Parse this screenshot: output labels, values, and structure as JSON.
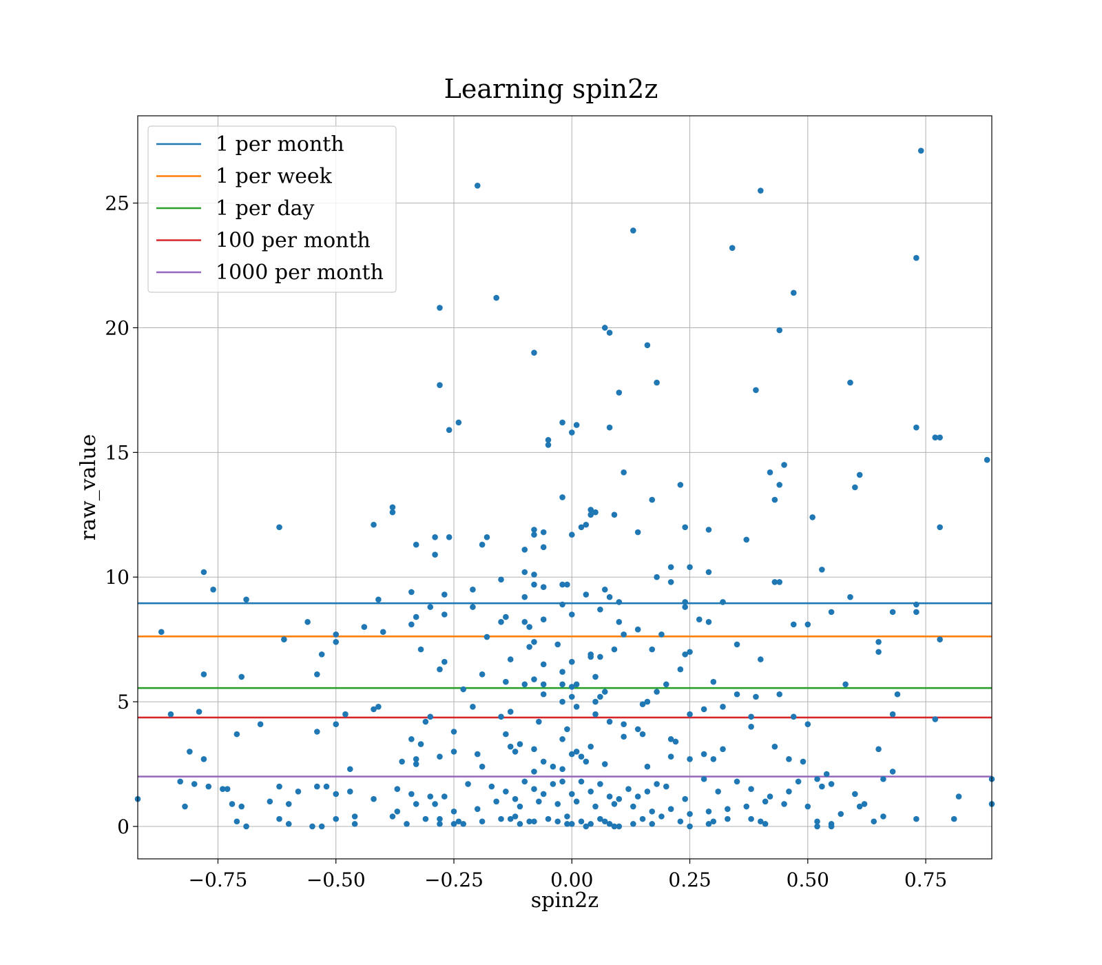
{
  "chart_data": {
    "type": "scatter",
    "title": "Learning spin2z",
    "xlabel": "spin2z",
    "ylabel": "raw_value",
    "xlim": [
      -0.92,
      0.89
    ],
    "ylim": [
      -1.3,
      28.5
    ],
    "xticks": [
      -0.75,
      -0.5,
      -0.25,
      0.0,
      0.25,
      0.5,
      0.75
    ],
    "xtick_labels": [
      "−0.75",
      "−0.50",
      "−0.25",
      "0.00",
      "0.25",
      "0.50",
      "0.75"
    ],
    "yticks": [
      0,
      5,
      10,
      15,
      20,
      25
    ],
    "ytick_labels": [
      "0",
      "5",
      "10",
      "15",
      "20",
      "25"
    ],
    "grid": true,
    "legend_position": "top-left",
    "point_color": "#1f77b4",
    "lines": [
      {
        "name": "1 per month",
        "y": 8.95,
        "color": "#1f77b4"
      },
      {
        "name": "1 per week",
        "y": 7.62,
        "color": "#ff7f0e"
      },
      {
        "name": "1 per day",
        "y": 5.55,
        "color": "#2ca02c"
      },
      {
        "name": "100 per month",
        "y": 4.37,
        "color": "#d62728"
      },
      {
        "name": "1000 per month",
        "y": 2.0,
        "color": "#9467bd"
      }
    ],
    "points": [
      [
        0.74,
        27.1
      ],
      [
        -0.2,
        25.7
      ],
      [
        0.4,
        25.5
      ],
      [
        0.13,
        23.9
      ],
      [
        0.34,
        23.2
      ],
      [
        0.73,
        22.8
      ],
      [
        0.47,
        21.4
      ],
      [
        -0.16,
        21.2
      ],
      [
        -0.28,
        20.8
      ],
      [
        0.07,
        20.0
      ],
      [
        0.08,
        19.8
      ],
      [
        0.44,
        19.9
      ],
      [
        0.16,
        19.3
      ],
      [
        -0.08,
        19.0
      ],
      [
        -0.28,
        17.7
      ],
      [
        0.18,
        17.8
      ],
      [
        0.59,
        17.8
      ],
      [
        0.39,
        17.5
      ],
      [
        0.1,
        17.4
      ],
      [
        -0.24,
        16.2
      ],
      [
        -0.02,
        16.2
      ],
      [
        0.01,
        16.1
      ],
      [
        0.08,
        16.0
      ],
      [
        -0.26,
        15.9
      ],
      [
        0.73,
        16.0
      ],
      [
        0.77,
        15.6
      ],
      [
        0.78,
        15.6
      ],
      [
        0.0,
        15.8
      ],
      [
        -0.05,
        15.5
      ],
      [
        -0.05,
        15.3
      ],
      [
        0.88,
        14.7
      ],
      [
        0.45,
        14.5
      ],
      [
        0.42,
        14.2
      ],
      [
        0.11,
        14.2
      ],
      [
        0.61,
        14.1
      ],
      [
        0.44,
        13.7
      ],
      [
        0.23,
        13.7
      ],
      [
        0.6,
        13.6
      ],
      [
        0.43,
        13.1
      ],
      [
        0.17,
        13.1
      ],
      [
        -0.02,
        13.2
      ],
      [
        -0.38,
        12.8
      ],
      [
        -0.38,
        12.6
      ],
      [
        0.04,
        12.7
      ],
      [
        0.05,
        12.6
      ],
      [
        0.04,
        12.5
      ],
      [
        0.09,
        12.5
      ],
      [
        0.51,
        12.4
      ],
      [
        -0.42,
        12.1
      ],
      [
        0.02,
        12.0
      ],
      [
        0.03,
        12.1
      ],
      [
        0.24,
        12.0
      ],
      [
        0.78,
        12.0
      ],
      [
        -0.62,
        12.0
      ],
      [
        -0.08,
        11.9
      ],
      [
        0.29,
        11.9
      ],
      [
        0.14,
        11.8
      ],
      [
        -0.06,
        11.8
      ],
      [
        -0.08,
        11.7
      ],
      [
        0.0,
        11.7
      ],
      [
        -0.29,
        11.6
      ],
      [
        -0.26,
        11.6
      ],
      [
        -0.18,
        11.6
      ],
      [
        -0.19,
        11.3
      ],
      [
        -0.33,
        11.3
      ],
      [
        0.37,
        11.5
      ],
      [
        -0.1,
        11.1
      ],
      [
        -0.06,
        11.2
      ],
      [
        -0.29,
        10.9
      ],
      [
        0.25,
        10.4
      ],
      [
        0.21,
        10.4
      ],
      [
        0.53,
        10.3
      ],
      [
        0.29,
        10.2
      ],
      [
        -0.1,
        10.2
      ],
      [
        -0.08,
        10.1
      ],
      [
        -0.78,
        10.2
      ],
      [
        0.18,
        10.0
      ],
      [
        -0.15,
        9.9
      ],
      [
        0.21,
        9.8
      ],
      [
        0.43,
        9.8
      ],
      [
        0.44,
        9.8
      ],
      [
        -0.01,
        9.7
      ],
      [
        -0.02,
        9.7
      ],
      [
        -0.06,
        9.6
      ],
      [
        -0.08,
        9.7
      ],
      [
        0.07,
        9.5
      ],
      [
        -0.21,
        9.5
      ],
      [
        -0.76,
        9.5
      ],
      [
        -0.34,
        9.4
      ],
      [
        0.03,
        9.3
      ],
      [
        -0.27,
        9.3
      ],
      [
        -0.1,
        9.2
      ],
      [
        0.08,
        9.2
      ],
      [
        -0.41,
        9.1
      ],
      [
        0.32,
        9.0
      ],
      [
        0.59,
        9.2
      ],
      [
        -0.69,
        9.1
      ],
      [
        0.1,
        9.0
      ],
      [
        0.24,
        9.0
      ],
      [
        0.73,
        8.9
      ],
      [
        -0.02,
        8.9
      ],
      [
        -0.3,
        8.8
      ],
      [
        -0.21,
        8.8
      ],
      [
        0.24,
        8.8
      ],
      [
        0.06,
        8.7
      ],
      [
        0.73,
        8.6
      ],
      [
        0.55,
        8.6
      ],
      [
        0.68,
        8.6
      ],
      [
        -0.27,
        8.5
      ],
      [
        0.0,
        8.5
      ],
      [
        -0.14,
        8.4
      ],
      [
        -0.33,
        8.4
      ],
      [
        -0.06,
        8.3
      ],
      [
        -0.15,
        8.2
      ],
      [
        0.1,
        8.2
      ],
      [
        0.27,
        8.3
      ],
      [
        0.29,
        8.2
      ],
      [
        -0.56,
        8.2
      ],
      [
        -0.1,
        8.2
      ],
      [
        -0.34,
        8.1
      ],
      [
        -0.44,
        8.0
      ],
      [
        0.47,
        8.1
      ],
      [
        0.5,
        8.1
      ],
      [
        -0.09,
        8.0
      ],
      [
        0.14,
        7.9
      ],
      [
        -0.87,
        7.8
      ],
      [
        -0.4,
        7.8
      ],
      [
        0.11,
        7.7
      ],
      [
        0.19,
        7.7
      ],
      [
        -0.5,
        7.7
      ],
      [
        -0.18,
        7.6
      ],
      [
        0.78,
        7.5
      ],
      [
        -0.61,
        7.5
      ],
      [
        -0.5,
        7.4
      ],
      [
        0.65,
        7.4
      ],
      [
        -0.08,
        7.4
      ],
      [
        -0.03,
        7.3
      ],
      [
        0.35,
        7.3
      ],
      [
        -0.09,
        7.2
      ],
      [
        0.17,
        7.1
      ],
      [
        0.09,
        7.1
      ],
      [
        -0.32,
        7.1
      ],
      [
        0.25,
        7.0
      ],
      [
        0.24,
        6.9
      ],
      [
        0.65,
        7.0
      ],
      [
        -0.53,
        6.9
      ],
      [
        0.04,
        6.9
      ],
      [
        0.04,
        6.8
      ],
      [
        0.06,
        6.8
      ],
      [
        0.4,
        6.7
      ],
      [
        -0.13,
        6.7
      ],
      [
        -0.27,
        6.6
      ],
      [
        0.0,
        6.6
      ],
      [
        -0.06,
        6.5
      ],
      [
        -0.28,
        6.3
      ],
      [
        0.23,
        6.3
      ],
      [
        -0.02,
        6.2
      ],
      [
        -0.54,
        6.1
      ],
      [
        -0.78,
        6.1
      ],
      [
        -0.19,
        6.1
      ],
      [
        -0.7,
        6.0
      ],
      [
        0.05,
        6.0
      ],
      [
        -0.14,
        5.8
      ],
      [
        0.3,
        5.8
      ],
      [
        -0.06,
        5.7
      ],
      [
        -0.02,
        5.7
      ],
      [
        -0.1,
        5.7
      ],
      [
        0.01,
        5.7
      ],
      [
        0.58,
        5.7
      ],
      [
        0.2,
        5.7
      ],
      [
        0.0,
        5.6
      ],
      [
        -0.08,
        5.9
      ],
      [
        -0.23,
        5.5
      ],
      [
        0.07,
        5.4
      ],
      [
        0.18,
        5.4
      ],
      [
        0.35,
        5.3
      ],
      [
        0.39,
        5.2
      ],
      [
        0.44,
        5.3
      ],
      [
        0.0,
        5.2
      ],
      [
        0.69,
        5.3
      ],
      [
        -0.06,
        5.3
      ],
      [
        0.06,
        5.2
      ],
      [
        -0.02,
        5.0
      ],
      [
        0.05,
        5.0
      ],
      [
        0.16,
        5.0
      ],
      [
        0.15,
        4.9
      ],
      [
        -0.21,
        4.8
      ],
      [
        0.01,
        4.8
      ],
      [
        0.32,
        4.8
      ],
      [
        0.28,
        4.7
      ],
      [
        -0.42,
        4.7
      ],
      [
        -0.41,
        4.8
      ],
      [
        -0.13,
        4.6
      ],
      [
        0.05,
        4.5
      ],
      [
        -0.85,
        4.5
      ],
      [
        -0.48,
        4.5
      ],
      [
        0.25,
        4.5
      ],
      [
        -0.79,
        4.6
      ],
      [
        0.68,
        4.5
      ],
      [
        0.47,
        4.4
      ],
      [
        0.38,
        4.4
      ],
      [
        -0.3,
        4.4
      ],
      [
        -0.31,
        4.2
      ],
      [
        0.08,
        4.2
      ],
      [
        -0.15,
        4.4
      ],
      [
        0.11,
        4.1
      ],
      [
        -0.5,
        4.1
      ],
      [
        -0.66,
        4.1
      ],
      [
        0.5,
        4.1
      ],
      [
        0.77,
        4.3
      ],
      [
        0.38,
        4.0
      ],
      [
        -0.07,
        4.2
      ],
      [
        0.14,
        3.9
      ],
      [
        -0.54,
        3.8
      ],
      [
        -0.01,
        3.9
      ],
      [
        -0.25,
        3.8
      ],
      [
        -0.71,
        3.7
      ],
      [
        0.15,
        3.7
      ],
      [
        -0.14,
        3.7
      ],
      [
        0.11,
        3.6
      ],
      [
        -0.34,
        3.5
      ],
      [
        -0.02,
        3.5
      ],
      [
        0.21,
        3.5
      ],
      [
        0.22,
        3.4
      ],
      [
        -0.11,
        3.3
      ],
      [
        -0.32,
        3.3
      ],
      [
        0.43,
        3.2
      ],
      [
        0.04,
        3.2
      ],
      [
        0.01,
        3.0
      ],
      [
        -0.13,
        3.2
      ],
      [
        -0.08,
        3.1
      ],
      [
        0.32,
        3.1
      ],
      [
        -0.25,
        3.0
      ],
      [
        -0.12,
        3.0
      ],
      [
        -0.81,
        3.0
      ],
      [
        0.28,
        2.9
      ],
      [
        0.0,
        2.9
      ],
      [
        0.65,
        3.1
      ],
      [
        0.21,
        2.8
      ],
      [
        -0.2,
        2.9
      ],
      [
        0.02,
        2.8
      ],
      [
        0.3,
        2.7
      ],
      [
        -0.33,
        2.7
      ],
      [
        -0.28,
        2.8
      ],
      [
        -0.36,
        2.6
      ],
      [
        -0.06,
        2.6
      ],
      [
        -0.78,
        2.7
      ],
      [
        0.03,
        2.6
      ],
      [
        0.49,
        2.6
      ],
      [
        0.25,
        2.7
      ],
      [
        0.46,
        2.7
      ],
      [
        0.07,
        2.5
      ],
      [
        -0.33,
        2.5
      ],
      [
        0.16,
        2.4
      ],
      [
        -0.19,
        2.4
      ],
      [
        -0.04,
        2.4
      ],
      [
        -0.02,
        2.3
      ],
      [
        -0.47,
        2.3
      ],
      [
        0.68,
        2.2
      ],
      [
        -0.08,
        2.2
      ],
      [
        0.54,
        2.1
      ],
      [
        0.52,
        1.9
      ],
      [
        0.66,
        1.9
      ],
      [
        0.89,
        1.9
      ],
      [
        -0.62,
        1.6
      ],
      [
        -0.73,
        1.5
      ],
      [
        -0.54,
        1.6
      ],
      [
        -0.52,
        1.6
      ],
      [
        -0.37,
        1.5
      ],
      [
        -0.34,
        1.3
      ],
      [
        -0.3,
        1.2
      ],
      [
        -0.27,
        1.2
      ],
      [
        -0.22,
        1.7
      ],
      [
        -0.17,
        1.6
      ],
      [
        -0.14,
        1.4
      ],
      [
        -0.12,
        1.1
      ],
      [
        -0.1,
        1.8
      ],
      [
        -0.08,
        1.5
      ],
      [
        -0.06,
        1.3
      ],
      [
        -0.04,
        1.7
      ],
      [
        -0.02,
        1.8
      ],
      [
        0.0,
        1.3
      ],
      [
        0.02,
        1.8
      ],
      [
        0.04,
        1.4
      ],
      [
        0.06,
        1.7
      ],
      [
        0.08,
        1.2
      ],
      [
        0.1,
        1.1
      ],
      [
        0.12,
        1.5
      ],
      [
        0.14,
        1.2
      ],
      [
        0.16,
        1.4
      ],
      [
        0.18,
        1.7
      ],
      [
        0.2,
        1.6
      ],
      [
        0.24,
        1.1
      ],
      [
        0.28,
        1.9
      ],
      [
        0.31,
        1.4
      ],
      [
        0.35,
        1.8
      ],
      [
        0.38,
        1.5
      ],
      [
        0.42,
        1.2
      ],
      [
        0.46,
        1.4
      ],
      [
        0.48,
        1.8
      ],
      [
        0.53,
        1.6
      ],
      [
        0.55,
        1.7
      ],
      [
        0.6,
        1.3
      ],
      [
        0.62,
        0.9
      ],
      [
        -0.92,
        1.1
      ],
      [
        -0.82,
        0.8
      ],
      [
        -0.72,
        0.9
      ],
      [
        -0.7,
        0.8
      ],
      [
        -0.64,
        1.0
      ],
      [
        -0.6,
        0.9
      ],
      [
        -0.5,
        1.3
      ],
      [
        -0.47,
        1.4
      ],
      [
        -0.42,
        1.1
      ],
      [
        -0.37,
        0.6
      ],
      [
        -0.33,
        0.9
      ],
      [
        -0.29,
        0.9
      ],
      [
        -0.25,
        0.6
      ],
      [
        -0.2,
        0.7
      ],
      [
        -0.16,
        1.0
      ],
      [
        -0.11,
        0.8
      ],
      [
        -0.07,
        1.0
      ],
      [
        -0.03,
        0.9
      ],
      [
        0.01,
        1.0
      ],
      [
        0.05,
        0.8
      ],
      [
        0.09,
        0.9
      ],
      [
        0.13,
        0.8
      ],
      [
        0.17,
        0.6
      ],
      [
        0.21,
        0.7
      ],
      [
        0.25,
        0.5
      ],
      [
        0.29,
        0.6
      ],
      [
        0.33,
        0.7
      ],
      [
        0.37,
        0.8
      ],
      [
        0.41,
        1.0
      ],
      [
        0.45,
        0.9
      ],
      [
        0.5,
        0.8
      ],
      [
        0.57,
        0.5
      ],
      [
        0.61,
        0.8
      ],
      [
        0.82,
        1.2
      ],
      [
        0.89,
        0.9
      ],
      [
        -0.83,
        1.8
      ],
      [
        -0.8,
        1.7
      ],
      [
        -0.77,
        1.6
      ],
      [
        -0.74,
        1.5
      ],
      [
        -0.58,
        1.4
      ],
      [
        -0.46,
        0.4
      ],
      [
        -0.38,
        0.4
      ],
      [
        -0.31,
        0.3
      ],
      [
        -0.28,
        0.1
      ],
      [
        -0.24,
        0.2
      ],
      [
        -0.19,
        0.2
      ],
      [
        -0.15,
        0.3
      ],
      [
        -0.12,
        0.4
      ],
      [
        -0.09,
        0.2
      ],
      [
        -0.05,
        0.3
      ],
      [
        -0.01,
        0.1
      ],
      [
        0.02,
        0.2
      ],
      [
        0.04,
        0.1
      ],
      [
        0.06,
        0.3
      ],
      [
        0.08,
        0.1
      ],
      [
        0.1,
        0.0
      ],
      [
        0.13,
        0.1
      ],
      [
        0.15,
        0.3
      ],
      [
        0.17,
        0.1
      ],
      [
        0.25,
        0.0
      ],
      [
        0.29,
        0.1
      ],
      [
        0.33,
        0.3
      ],
      [
        0.38,
        0.3
      ],
      [
        0.4,
        0.2
      ],
      [
        0.52,
        0.2
      ],
      [
        0.55,
        0.1
      ],
      [
        0.64,
        0.2
      ],
      [
        0.73,
        0.3
      ],
      [
        0.81,
        0.3
      ],
      [
        -0.71,
        0.2
      ],
      [
        -0.69,
        0.0
      ],
      [
        -0.62,
        0.3
      ],
      [
        -0.6,
        0.1
      ],
      [
        -0.55,
        0.0
      ],
      [
        -0.53,
        0.0
      ],
      [
        -0.5,
        0.3
      ],
      [
        -0.46,
        0.1
      ],
      [
        -0.35,
        0.1
      ],
      [
        -0.28,
        0.3
      ],
      [
        -0.25,
        0.1
      ],
      [
        -0.23,
        0.1
      ],
      [
        -0.13,
        0.3
      ],
      [
        -0.11,
        0.1
      ],
      [
        -0.08,
        0.2
      ],
      [
        -0.03,
        0.2
      ],
      [
        -0.01,
        0.4
      ],
      [
        0.0,
        0.1
      ],
      [
        0.03,
        0.0
      ],
      [
        0.07,
        0.2
      ],
      [
        0.09,
        0.0
      ],
      [
        0.19,
        0.4
      ],
      [
        0.23,
        0.2
      ],
      [
        0.3,
        0.2
      ],
      [
        0.41,
        0.1
      ],
      [
        0.52,
        0.0
      ],
      [
        0.55,
        0.0
      ],
      [
        0.66,
        0.4
      ]
    ]
  }
}
